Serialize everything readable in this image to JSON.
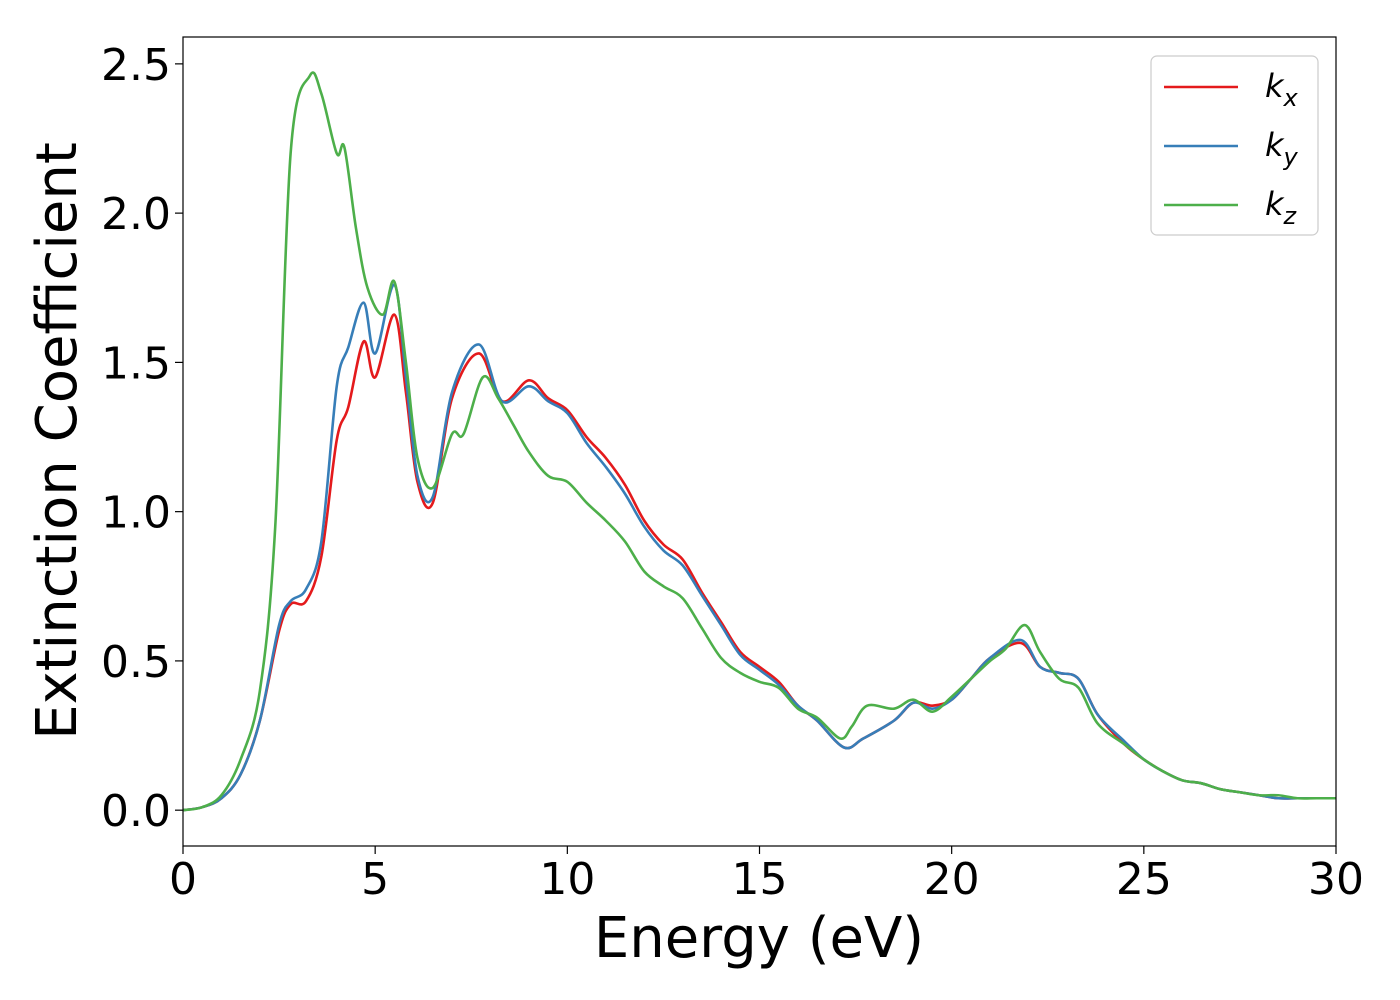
{
  "chart_data": {
    "type": "line",
    "xlabel": "Energy (eV)",
    "ylabel": "Extinction Coefficient",
    "xlim": [
      0,
      30
    ],
    "ylim": [
      -0.12,
      2.59
    ],
    "xticks": [
      "0",
      "5",
      "10",
      "15",
      "20",
      "25",
      "30"
    ],
    "yticks": [
      "0.0",
      "0.5",
      "1.0",
      "1.5",
      "2.0",
      "2.5"
    ],
    "grid": false,
    "legend_position": "top-right",
    "series": [
      {
        "name": "k",
        "subscript": "x",
        "color": "#e41a1c",
        "x": [
          0,
          0.5,
          1,
          1.5,
          2,
          2.5,
          2.8,
          3.2,
          3.6,
          4,
          4.3,
          4.7,
          5.0,
          5.5,
          5.8,
          6.1,
          6.5,
          7,
          7.7,
          8.3,
          9,
          9.5,
          10,
          10.5,
          11,
          11.5,
          12,
          12.5,
          13,
          13.5,
          14,
          14.5,
          15,
          15.5,
          16,
          16.5,
          17.2,
          17.7,
          18.5,
          19,
          19.5,
          20,
          20.5,
          21,
          21.8,
          22.3,
          22.8,
          23.3,
          23.8,
          24.5,
          25,
          25.5,
          26,
          26.5,
          27,
          27.5,
          28,
          28.5,
          29,
          29.5,
          30
        ],
        "values": [
          0,
          0.01,
          0.04,
          0.12,
          0.3,
          0.6,
          0.69,
          0.7,
          0.85,
          1.24,
          1.35,
          1.57,
          1.45,
          1.66,
          1.4,
          1.1,
          1.03,
          1.38,
          1.53,
          1.37,
          1.44,
          1.38,
          1.34,
          1.25,
          1.18,
          1.09,
          0.97,
          0.89,
          0.84,
          0.73,
          0.63,
          0.53,
          0.48,
          0.43,
          0.35,
          0.3,
          0.21,
          0.24,
          0.3,
          0.36,
          0.35,
          0.37,
          0.44,
          0.51,
          0.56,
          0.48,
          0.46,
          0.44,
          0.32,
          0.22,
          0.17,
          0.13,
          0.1,
          0.09,
          0.07,
          0.06,
          0.05,
          0.04,
          0.04,
          0.04,
          0.04
        ]
      },
      {
        "name": "k",
        "subscript": "y",
        "color": "#377eb8",
        "x": [
          0,
          0.5,
          1,
          1.5,
          2,
          2.5,
          2.8,
          3.2,
          3.6,
          4,
          4.3,
          4.7,
          5.0,
          5.5,
          5.8,
          6.1,
          6.5,
          7,
          7.7,
          8.3,
          9,
          9.5,
          10,
          10.5,
          11,
          11.5,
          12,
          12.5,
          13,
          13.5,
          14,
          14.5,
          15,
          15.5,
          16,
          16.5,
          17.2,
          17.7,
          18.5,
          19,
          19.5,
          20,
          20.5,
          21,
          21.8,
          22.3,
          22.8,
          23.3,
          23.8,
          24.5,
          25,
          25.5,
          26,
          26.5,
          27,
          27.5,
          28,
          28.5,
          29,
          29.5,
          30
        ],
        "values": [
          0,
          0.01,
          0.04,
          0.12,
          0.3,
          0.62,
          0.7,
          0.74,
          0.9,
          1.42,
          1.55,
          1.7,
          1.53,
          1.76,
          1.45,
          1.12,
          1.05,
          1.4,
          1.56,
          1.37,
          1.42,
          1.37,
          1.33,
          1.23,
          1.15,
          1.06,
          0.95,
          0.87,
          0.82,
          0.72,
          0.62,
          0.52,
          0.47,
          0.42,
          0.35,
          0.3,
          0.21,
          0.24,
          0.3,
          0.36,
          0.34,
          0.37,
          0.44,
          0.51,
          0.57,
          0.48,
          0.46,
          0.44,
          0.32,
          0.23,
          0.17,
          0.13,
          0.1,
          0.09,
          0.07,
          0.06,
          0.05,
          0.04,
          0.04,
          0.04,
          0.04
        ]
      },
      {
        "name": "k",
        "subscript": "z",
        "color": "#4daf4a",
        "x": [
          0,
          0.5,
          1,
          1.5,
          2,
          2.4,
          2.8,
          3.3,
          3.6,
          4.0,
          4.2,
          4.5,
          4.8,
          5.2,
          5.5,
          5.8,
          6.1,
          6.5,
          7,
          7.3,
          7.8,
          8.2,
          8.6,
          9,
          9.5,
          10,
          10.5,
          11,
          11.5,
          12,
          12.5,
          13,
          13.5,
          14,
          14.5,
          15,
          15.5,
          16,
          16.5,
          17.1,
          17.4,
          17.8,
          18.5,
          19,
          19.5,
          20,
          20.5,
          21,
          21.4,
          21.9,
          22.3,
          22.8,
          23.3,
          23.8,
          24.5,
          25,
          25.5,
          26,
          26.5,
          27,
          27.5,
          28,
          28.5,
          29,
          29.5,
          30
        ],
        "values": [
          0,
          0.01,
          0.05,
          0.17,
          0.4,
          0.95,
          2.2,
          2.46,
          2.4,
          2.2,
          2.22,
          1.95,
          1.75,
          1.66,
          1.77,
          1.5,
          1.18,
          1.08,
          1.26,
          1.26,
          1.45,
          1.38,
          1.29,
          1.2,
          1.12,
          1.1,
          1.03,
          0.97,
          0.9,
          0.8,
          0.75,
          0.71,
          0.61,
          0.51,
          0.46,
          0.43,
          0.41,
          0.34,
          0.31,
          0.24,
          0.28,
          0.35,
          0.34,
          0.37,
          0.33,
          0.38,
          0.44,
          0.5,
          0.54,
          0.62,
          0.53,
          0.44,
          0.41,
          0.29,
          0.22,
          0.17,
          0.13,
          0.1,
          0.09,
          0.07,
          0.06,
          0.05,
          0.05,
          0.04,
          0.04,
          0.04
        ]
      }
    ]
  }
}
